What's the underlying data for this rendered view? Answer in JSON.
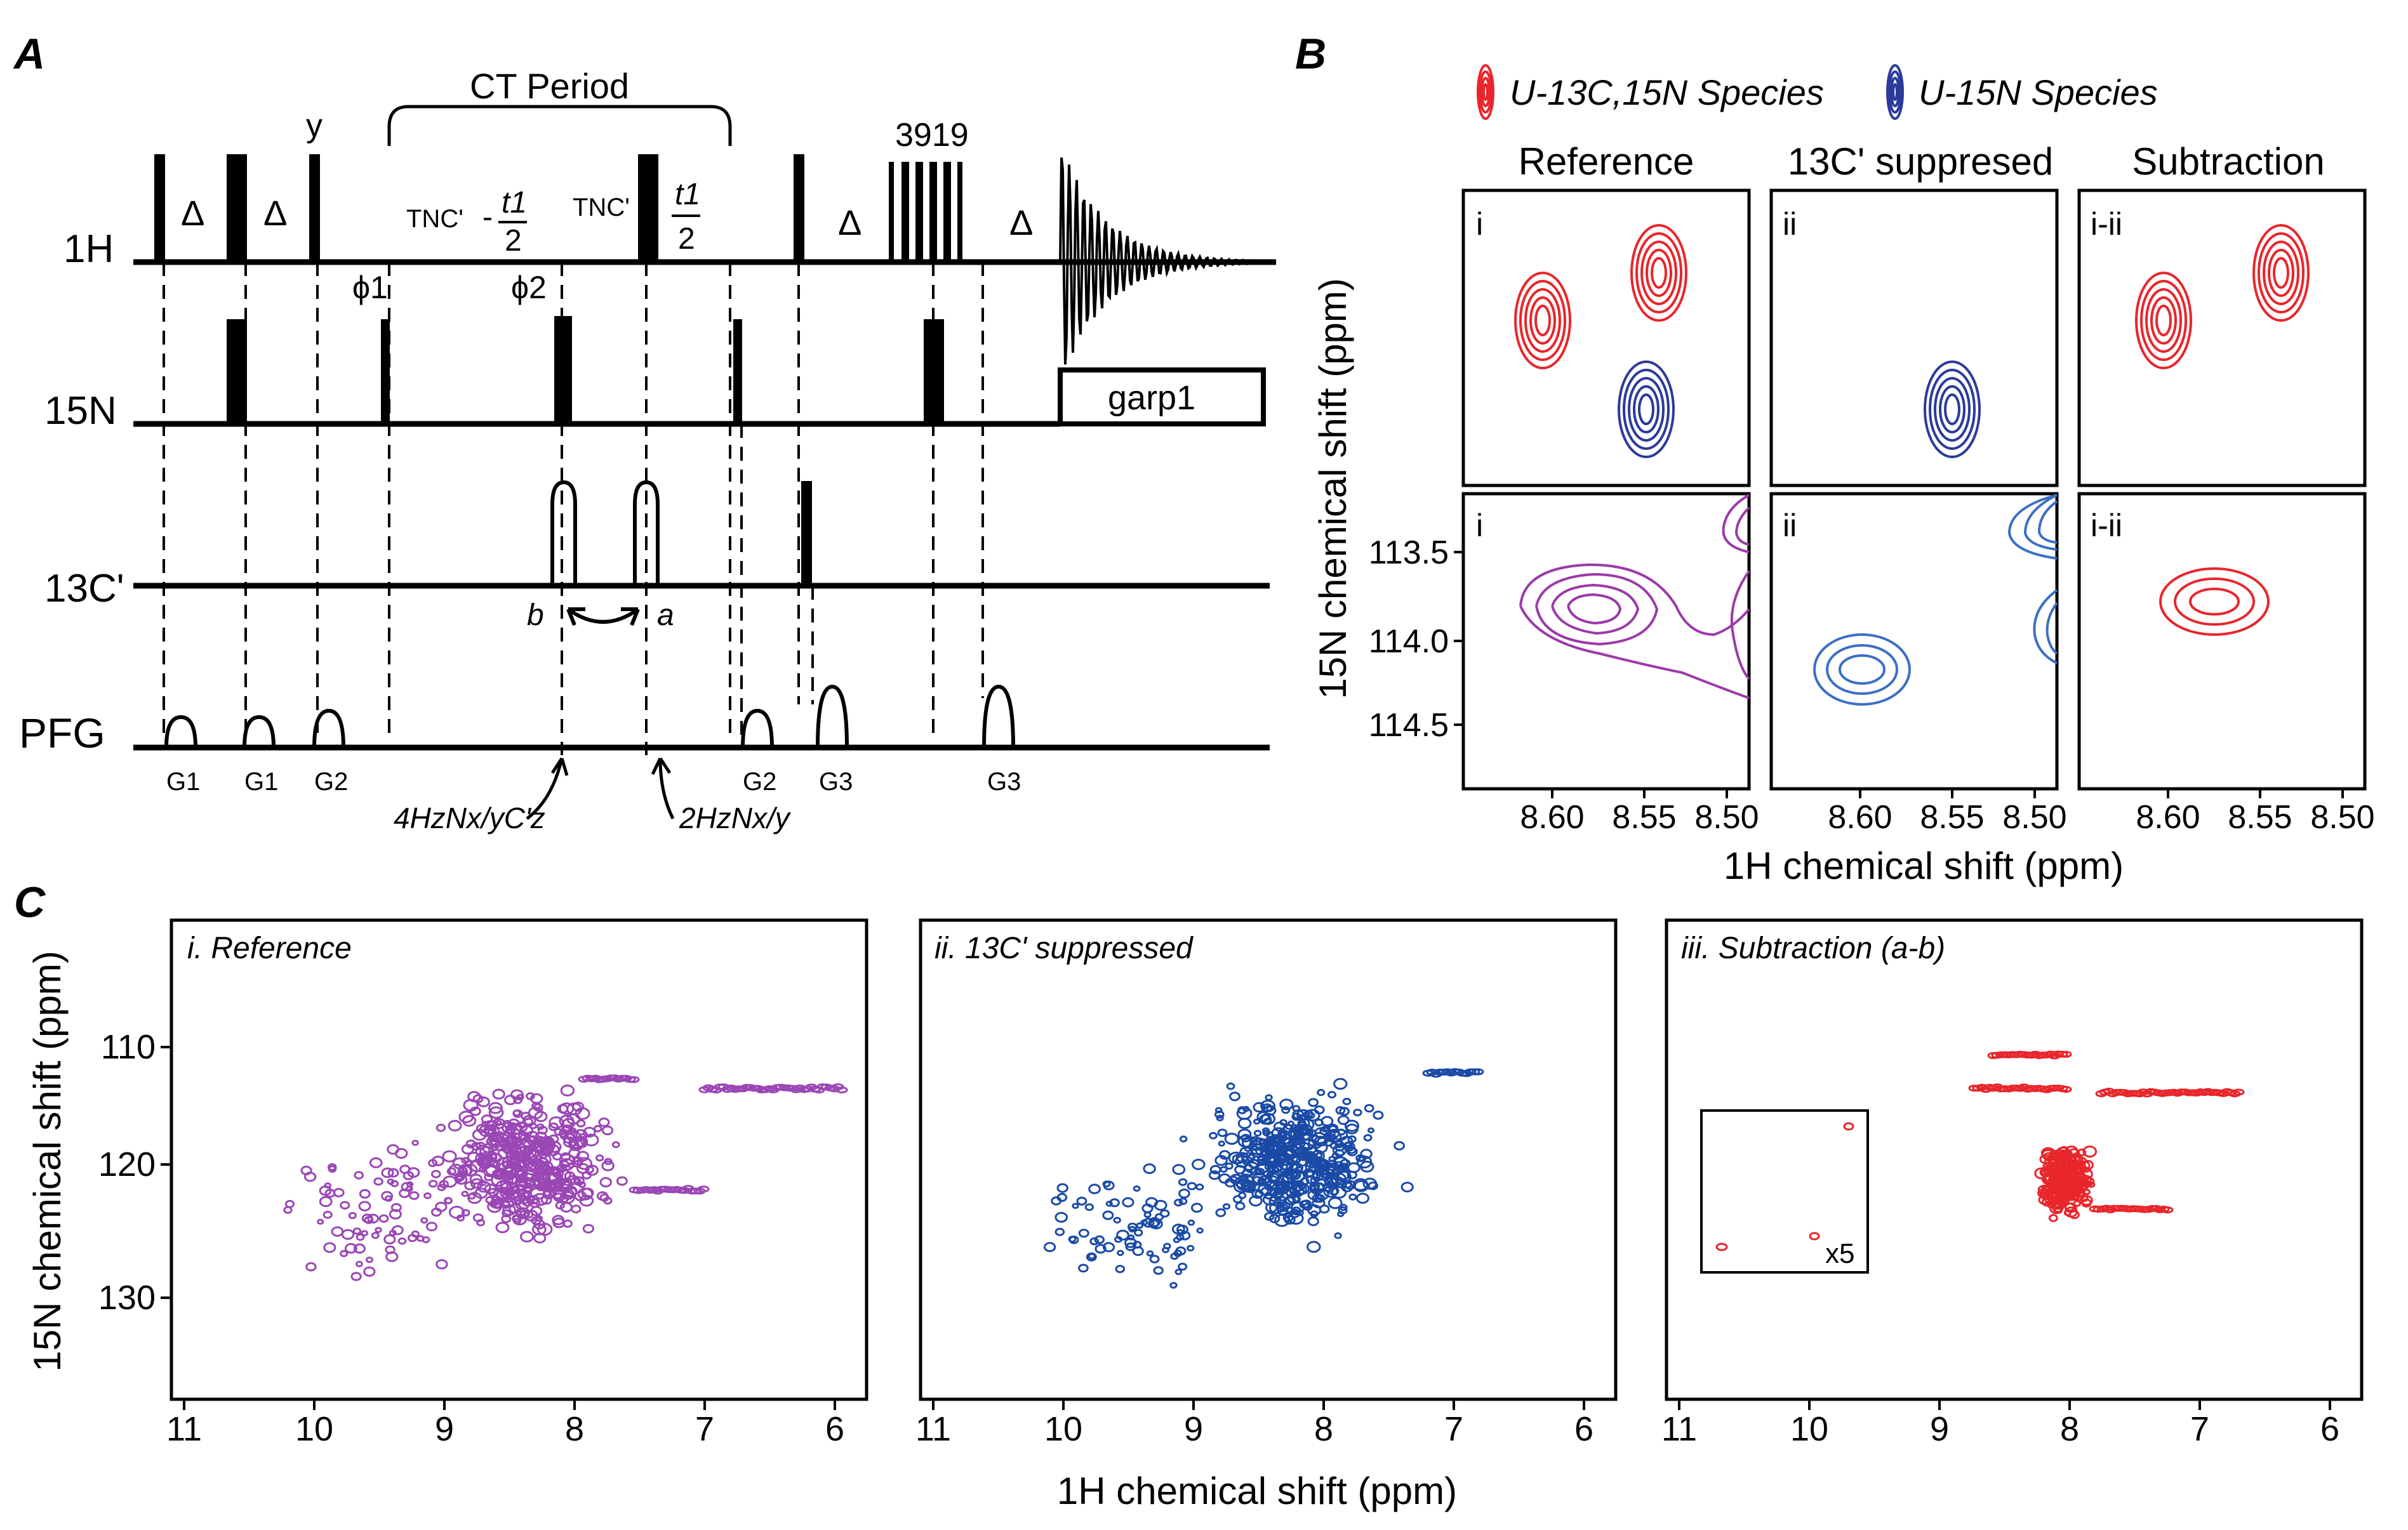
{
  "panel_a": {
    "letter": "A",
    "ct_period": "CT Period",
    "phase_y": "y",
    "garp_number": "3919",
    "delta": "Δ",
    "channels": {
      "h": "1H",
      "n": "15N",
      "c": "13C'",
      "pfg": "PFG"
    },
    "garp1": "garp1",
    "phi1": "ϕ1",
    "phi2": "ϕ2",
    "t_nc": "TNC'",
    "t1": "t1",
    "two": "2",
    "point_a": "a",
    "point_b": "b",
    "gradients": [
      "G1",
      "G1",
      "G2",
      "G2",
      "G3",
      "G3"
    ],
    "coherence_1": "4HzNx/yC'z",
    "coherence_2": "2HzNx/y"
  },
  "panel_b": {
    "letter": "B",
    "legend": {
      "c13": "U-13C,15N Species",
      "n15": "U-15N Species"
    },
    "columns": [
      "Reference",
      "13C' suppresed",
      "Subtraction"
    ],
    "subpanel_labels": [
      "i",
      "ii",
      "i-ii"
    ],
    "y_axis_label": "15N chemical shift (ppm)",
    "x_axis_label": "1H chemical shift (ppm)",
    "y_ticks": [
      "113.5",
      "114.0",
      "114.5"
    ],
    "x_ticks": [
      "8.60",
      "8.55",
      "8.50"
    ]
  },
  "panel_c": {
    "letter": "C",
    "titles": [
      "i. Reference",
      "ii. 13C' suppressed",
      "iii. Subtraction (a-b)"
    ],
    "inset_label": "x5",
    "y_axis_label": "15N chemical shift (ppm)",
    "x_axis_label": "1H chemical shift (ppm)",
    "x_ticks": [
      "11",
      "10",
      "9",
      "8",
      "7",
      "6"
    ],
    "y_ticks": [
      "110",
      "120",
      "130"
    ]
  },
  "colors": {
    "red": "#e8262b",
    "blue": "#2b3a9b",
    "purple": "#9b3aa8",
    "lightblue": "#3c6fc4",
    "darkblue": "#1a4aa6",
    "violet": "#9a47b5"
  }
}
